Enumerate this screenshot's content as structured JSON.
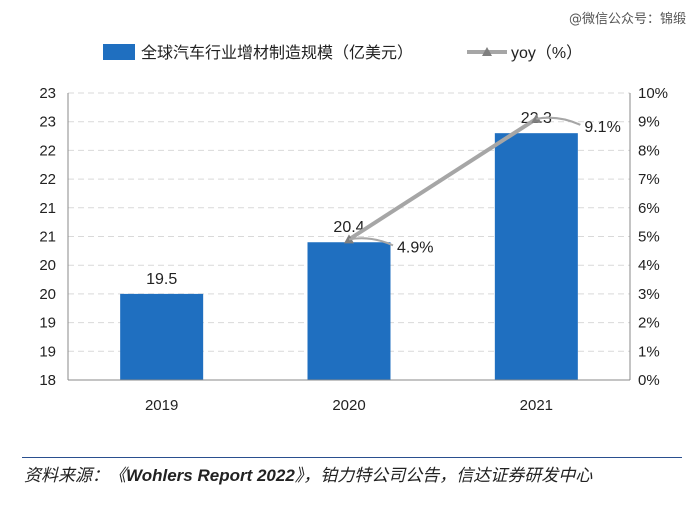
{
  "watermark": "@微信公众号：锦缎",
  "chart_data": {
    "type": "bar+line",
    "categories": [
      "2019",
      "2020",
      "2021"
    ],
    "series": [
      {
        "name": "全球汽车行业增材制造规模（亿美元）",
        "type": "bar",
        "axis": "left",
        "values": [
          19.5,
          20.4,
          22.3
        ],
        "labels": [
          "19.5",
          "20.4",
          "22.3"
        ],
        "color": "#1f6fc0"
      },
      {
        "name": "yoy（%）",
        "type": "line",
        "axis": "right",
        "values": [
          null,
          4.9,
          9.1
        ],
        "labels": [
          "",
          "4.9%",
          "9.1%"
        ],
        "color": "#a6a6a6"
      }
    ],
    "left_axis": {
      "min": 18,
      "max": 23,
      "ticks": [
        18,
        18.5,
        19,
        19.5,
        20,
        20.5,
        21,
        21.5,
        22,
        22.5,
        23
      ],
      "tick_labels": [
        "18",
        "19",
        "19",
        "20",
        "20",
        "21",
        "21",
        "22",
        "22",
        "23",
        "23"
      ]
    },
    "right_axis": {
      "min": 0,
      "max": 10,
      "ticks": [
        0,
        1,
        2,
        3,
        4,
        5,
        6,
        7,
        8,
        9,
        10
      ],
      "tick_labels": [
        "0%",
        "1%",
        "2%",
        "3%",
        "4%",
        "5%",
        "6%",
        "7%",
        "8%",
        "9%",
        "10%"
      ]
    },
    "grid": "horizontal dashed",
    "legend_position": "top"
  },
  "source": {
    "prefix": "资料来源：《",
    "report": "Wohlers Report 2022",
    "suffix": "》，铂力特公司公告，信达证券研发中心"
  }
}
